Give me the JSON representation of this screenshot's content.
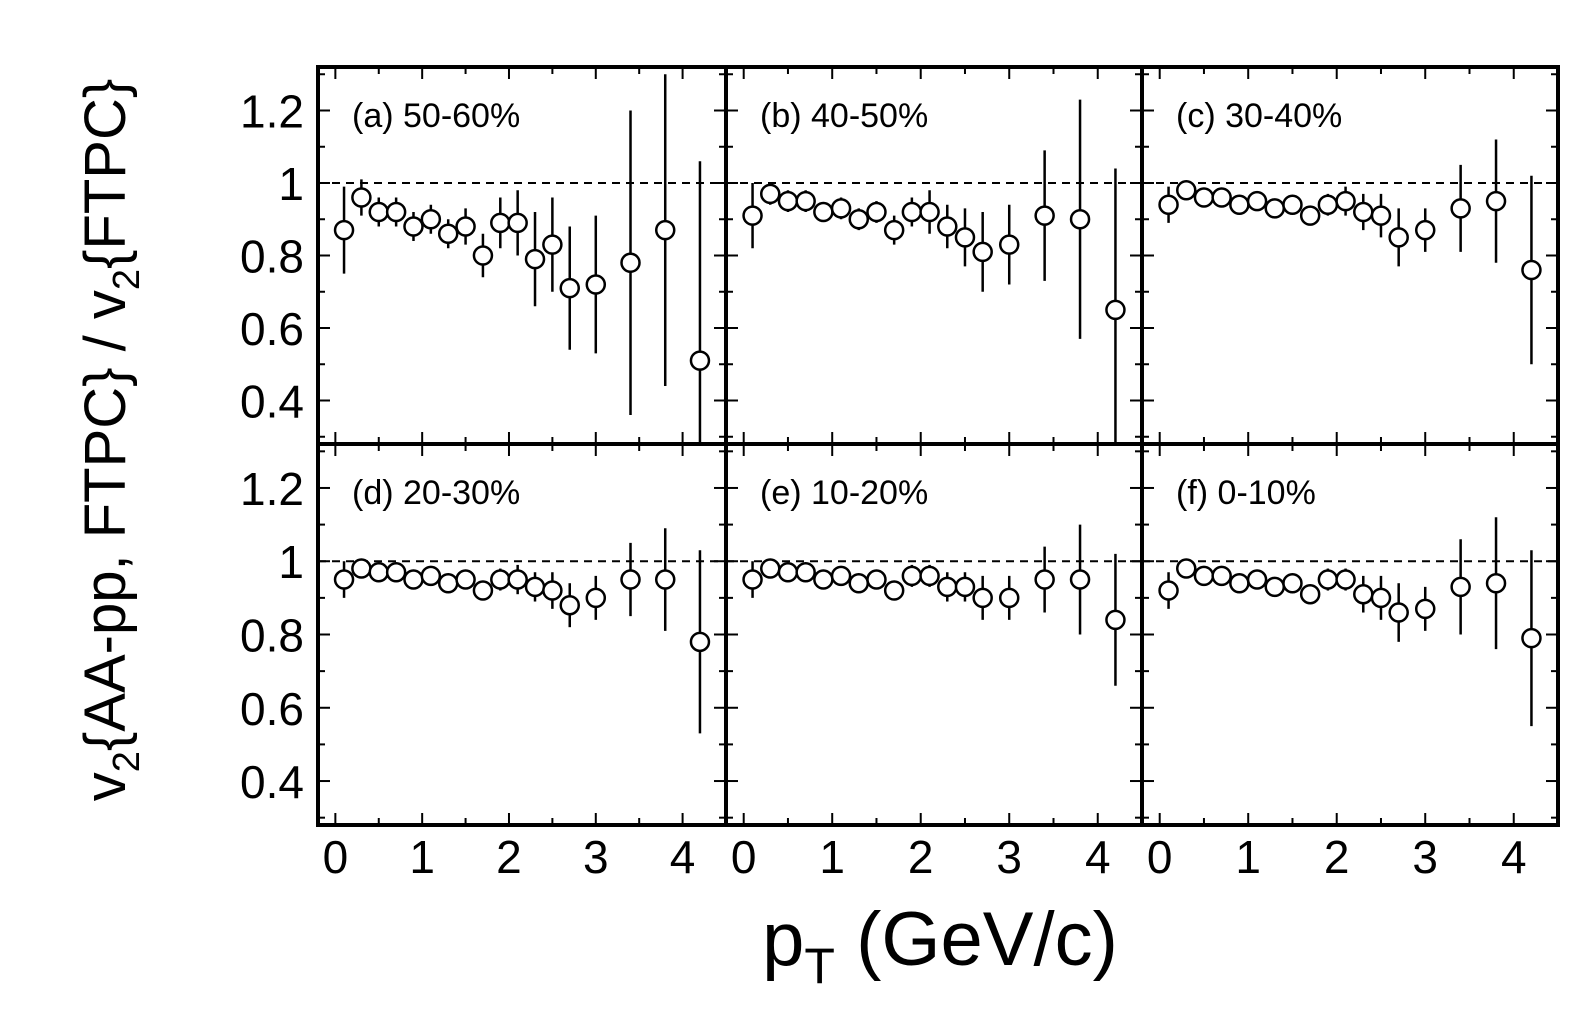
{
  "chart_data": {
    "type": "scatter",
    "layout": "2x3 panels sharing axes",
    "xlabel_main": "p",
    "xlabel_sub": "T",
    "xlabel_rest": " (GeV/c)",
    "ylabel_parts": [
      "v",
      "2",
      "{AA-pp, FTPC} / v",
      "2",
      "{FTPC}"
    ],
    "xlim": [
      -0.2,
      4.5
    ],
    "ylim": [
      0.28,
      1.32
    ],
    "xticks": [
      0,
      1,
      2,
      3,
      4
    ],
    "xtick_labels": [
      "0",
      "1",
      "2",
      "3",
      "4"
    ],
    "yticks": [
      0.4,
      0.6,
      0.8,
      1.0,
      1.2
    ],
    "ytick_labels": [
      "0.4",
      "0.6",
      "0.8",
      "1",
      "1.2"
    ],
    "reference_line": 1.0,
    "marker": "open circle",
    "grid": false,
    "panels": [
      {
        "label": "(a) 50-60%",
        "x": [
          0.1,
          0.3,
          0.5,
          0.7,
          0.9,
          1.1,
          1.3,
          1.5,
          1.7,
          1.9,
          2.1,
          2.3,
          2.5,
          2.7,
          3.0,
          3.4,
          3.8,
          4.2
        ],
        "y": [
          0.87,
          0.96,
          0.92,
          0.92,
          0.88,
          0.9,
          0.86,
          0.88,
          0.8,
          0.89,
          0.89,
          0.79,
          0.83,
          0.71,
          0.72,
          0.78,
          0.87,
          0.51
        ],
        "err": [
          0.12,
          0.05,
          0.04,
          0.04,
          0.04,
          0.04,
          0.04,
          0.05,
          0.06,
          0.07,
          0.09,
          0.13,
          0.13,
          0.17,
          0.19,
          0.42,
          0.43,
          0.55
        ]
      },
      {
        "label": "(b) 40-50%",
        "x": [
          0.1,
          0.3,
          0.5,
          0.7,
          0.9,
          1.1,
          1.3,
          1.5,
          1.7,
          1.9,
          2.1,
          2.3,
          2.5,
          2.7,
          3.0,
          3.4,
          3.8,
          4.2
        ],
        "y": [
          0.91,
          0.97,
          0.95,
          0.95,
          0.92,
          0.93,
          0.9,
          0.92,
          0.87,
          0.92,
          0.92,
          0.88,
          0.85,
          0.81,
          0.83,
          0.91,
          0.9,
          0.65
        ],
        "err": [
          0.09,
          0.03,
          0.03,
          0.03,
          0.02,
          0.03,
          0.03,
          0.03,
          0.04,
          0.04,
          0.06,
          0.06,
          0.08,
          0.11,
          0.11,
          0.18,
          0.33,
          0.39
        ]
      },
      {
        "label": "(c) 30-40%",
        "x": [
          0.1,
          0.3,
          0.5,
          0.7,
          0.9,
          1.1,
          1.3,
          1.5,
          1.7,
          1.9,
          2.1,
          2.3,
          2.5,
          2.7,
          3.0,
          3.4,
          3.8,
          4.2
        ],
        "y": [
          0.94,
          0.98,
          0.96,
          0.96,
          0.94,
          0.95,
          0.93,
          0.94,
          0.91,
          0.94,
          0.95,
          0.92,
          0.91,
          0.85,
          0.87,
          0.93,
          0.95,
          0.76
        ],
        "err": [
          0.05,
          0.02,
          0.02,
          0.02,
          0.02,
          0.02,
          0.02,
          0.02,
          0.02,
          0.03,
          0.04,
          0.05,
          0.06,
          0.08,
          0.06,
          0.12,
          0.17,
          0.26
        ]
      },
      {
        "label": "(d) 20-30%",
        "x": [
          0.1,
          0.3,
          0.5,
          0.7,
          0.9,
          1.1,
          1.3,
          1.5,
          1.7,
          1.9,
          2.1,
          2.3,
          2.5,
          2.7,
          3.0,
          3.4,
          3.8,
          4.2
        ],
        "y": [
          0.95,
          0.98,
          0.97,
          0.97,
          0.95,
          0.96,
          0.94,
          0.95,
          0.92,
          0.95,
          0.95,
          0.93,
          0.92,
          0.88,
          0.9,
          0.95,
          0.95,
          0.78
        ],
        "err": [
          0.05,
          0.02,
          0.02,
          0.02,
          0.02,
          0.02,
          0.02,
          0.02,
          0.02,
          0.03,
          0.04,
          0.04,
          0.05,
          0.06,
          0.06,
          0.1,
          0.14,
          0.25
        ]
      },
      {
        "label": "(e) 10-20%",
        "x": [
          0.1,
          0.3,
          0.5,
          0.7,
          0.9,
          1.1,
          1.3,
          1.5,
          1.7,
          1.9,
          2.1,
          2.3,
          2.5,
          2.7,
          3.0,
          3.4,
          3.8,
          4.2
        ],
        "y": [
          0.95,
          0.98,
          0.97,
          0.97,
          0.95,
          0.96,
          0.94,
          0.95,
          0.92,
          0.96,
          0.96,
          0.93,
          0.93,
          0.9,
          0.9,
          0.95,
          0.95,
          0.84
        ],
        "err": [
          0.05,
          0.02,
          0.02,
          0.02,
          0.02,
          0.02,
          0.02,
          0.02,
          0.02,
          0.03,
          0.03,
          0.04,
          0.04,
          0.06,
          0.06,
          0.09,
          0.15,
          0.18
        ]
      },
      {
        "label": "(f) 0-10%",
        "x": [
          0.1,
          0.3,
          0.5,
          0.7,
          0.9,
          1.1,
          1.3,
          1.5,
          1.7,
          1.9,
          2.1,
          2.3,
          2.5,
          2.7,
          3.0,
          3.4,
          3.8,
          4.2
        ],
        "y": [
          0.92,
          0.98,
          0.96,
          0.96,
          0.94,
          0.95,
          0.93,
          0.94,
          0.91,
          0.95,
          0.95,
          0.91,
          0.9,
          0.86,
          0.87,
          0.93,
          0.94,
          0.79
        ],
        "err": [
          0.05,
          0.02,
          0.02,
          0.02,
          0.02,
          0.02,
          0.02,
          0.02,
          0.02,
          0.03,
          0.03,
          0.05,
          0.06,
          0.08,
          0.06,
          0.13,
          0.18,
          0.24
        ]
      }
    ]
  }
}
